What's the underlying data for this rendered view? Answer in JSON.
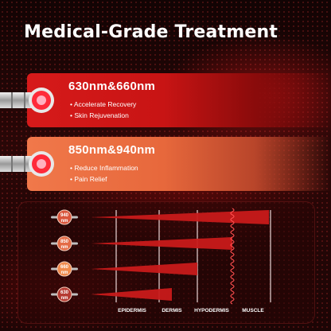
{
  "title": "Medical-Grade Treatment",
  "bands": [
    {
      "title": "630nm&660nm",
      "bullets": [
        "Accelerate Recovery",
        "Skin Rejuvenation"
      ],
      "color": "#d61a1a"
    },
    {
      "title": "850nm&940nm",
      "bullets": [
        "Reduce Inflammation",
        "Pain Relief"
      ],
      "color": "#f0784a"
    }
  ],
  "wavelengths": [
    {
      "value": "940",
      "unit": "nm",
      "color": "#d9553c"
    },
    {
      "value": "850",
      "unit": "nm",
      "color": "#e36b46"
    },
    {
      "value": "660",
      "unit": "nm",
      "color": "#f08a4c"
    },
    {
      "value": "630",
      "unit": "nm",
      "color": "#b53a32"
    }
  ],
  "layers": [
    "EPIDERMIS",
    "DERMIS",
    "HYPODERMIS",
    "MUSCLE"
  ],
  "penetration_layer_reached": [
    "MUSCLE",
    "MUSCLE",
    "HYPODERMIS",
    "DERMIS"
  ]
}
